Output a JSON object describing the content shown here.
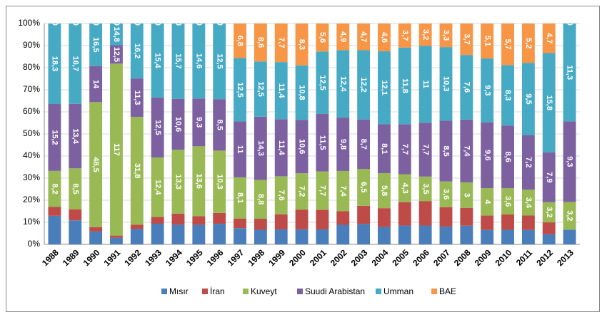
{
  "chart_data": {
    "type": "bar",
    "stacked": "percent",
    "categories": [
      "1988",
      "1989",
      "1990",
      "1991",
      "1992",
      "1993",
      "1994",
      "1995",
      "1996",
      "1997",
      "1998",
      "1999",
      "2000",
      "2001",
      "2002",
      "2003",
      "2004",
      "2005",
      "2006",
      "2007",
      "2008",
      "2009",
      "2010",
      "2011",
      "2012",
      "2013"
    ],
    "series": [
      {
        "name": "Mısır",
        "color": "#4a7ebb",
        "values": [
          6.5,
          5,
          5,
          4.5,
          4.5,
          4.3,
          4.1,
          3.8,
          3.4,
          3.2,
          3.3,
          3,
          3,
          3,
          3.6,
          3.6,
          2.9,
          2.9,
          2.7,
          2.5,
          2.2,
          2.1,
          2,
          1.9,
          1.6,
          1.7
        ]
      },
      {
        "name": "İran",
        "color": "#be4b48",
        "values": [
          2,
          2.3,
          1.7,
          1.5,
          1.3,
          1.4,
          2.3,
          1.7,
          1.8,
          1.9,
          2.5,
          3,
          3.9,
          3.9,
          2.5,
          3.2,
          3.1,
          3.6,
          3.5,
          2.7,
          2.1,
          2.1,
          2.1,
          1.9,
          1.9,
          0
        ]
      },
      {
        "name": "Kuveyt",
        "color": "#98b954",
        "values": [
          8.2,
          8.5,
          48.5,
          117,
          31.8,
          12.4,
          13.3,
          13.6,
          10.3,
          8.1,
          8.8,
          7.6,
          7.2,
          7.7,
          7.4,
          6.5,
          5.8,
          4.3,
          3.5,
          3.6,
          3,
          4,
          3.6,
          3.4,
          3.2,
          3.2
        ],
        "value_labels": [
          "8,2",
          "8,5",
          "48,5",
          "117",
          "31,8",
          "12,4",
          "13,3",
          "13,6",
          "10,3",
          "8,1",
          "8,8",
          "7,6",
          "7,2",
          "7,7",
          "7,4",
          "6,5",
          "5,8",
          "4,3",
          "3,5",
          "3,6",
          "3",
          "4",
          "3,6",
          "3,4",
          "3,2",
          "3,2"
        ]
      },
      {
        "name": "Suudi Arabistan",
        "color": "#7d60a0",
        "values": [
          15.2,
          13.4,
          14,
          12.5,
          11.3,
          12.5,
          10.6,
          9.3,
          8.5,
          11,
          14.3,
          11.4,
          10.6,
          11.5,
          9.8,
          8.7,
          8.1,
          7.7,
          7.7,
          8.5,
          7.4,
          9.6,
          8.6,
          7.2,
          7.9,
          9.3
        ],
        "value_labels": [
          "15,2",
          "13,4",
          "14",
          "12,5",
          "11,3",
          "12,5",
          "10,6",
          "9,3",
          "8,5",
          "11",
          "14,3",
          "11,4",
          "10,6",
          "11,5",
          "9,8",
          "8,7",
          "8,1",
          "7,7",
          "7,7",
          "8,5",
          "7,4",
          "9,6",
          "8,6",
          "7,2",
          "7,9",
          "9,3"
        ]
      },
      {
        "name": "Umman",
        "color": "#46aac5",
        "values": [
          18.3,
          16.7,
          16.5,
          14.8,
          16.2,
          15.4,
          15.7,
          14.6,
          12.5,
          12.5,
          12.5,
          11.4,
          10.8,
          12.5,
          12.4,
          12.2,
          12.1,
          11.8,
          11,
          10.3,
          7.6,
          9.3,
          8.3,
          9.5,
          15.8,
          11.3
        ],
        "value_labels": [
          "18,3",
          "16,7",
          "16,5",
          "14,8",
          "16,2",
          "15,4",
          "15,7",
          "14,6",
          "12,5",
          "12,5",
          "12,5",
          "11,4",
          "10,8",
          "12,5",
          "12,4",
          "12,2",
          "12,1",
          "11,8",
          "11",
          "10,3",
          "7,6",
          "9,3",
          "8,3",
          "9,5",
          "15,8",
          "11,3"
        ]
      },
      {
        "name": "BAE",
        "color": "#f79646",
        "values": [
          0,
          0,
          0,
          0,
          0,
          0,
          0,
          0,
          0,
          6.8,
          8.6,
          7.7,
          8.3,
          5.6,
          4.9,
          4.7,
          4.6,
          3.7,
          3.2,
          3.3,
          3.7,
          5.1,
          5.7,
          5.2,
          4.7,
          0
        ],
        "value_labels": [
          "0",
          "0",
          "0",
          "0",
          "0",
          "0",
          "0",
          "0",
          "0",
          "6,8",
          "8,6",
          "7,7",
          "8,3",
          "5,6",
          "4,9",
          "4,7",
          "4,6",
          "3,7",
          "3,2",
          "3,3",
          "3,7",
          "5,1",
          "5,7",
          "5,2",
          "4,7",
          "0"
        ]
      }
    ],
    "ylim": [
      0,
      100
    ],
    "yticks": [
      {
        "value": 0,
        "label": "0%"
      },
      {
        "value": 10,
        "label": "10%"
      },
      {
        "value": 20,
        "label": "20%"
      },
      {
        "value": 30,
        "label": "30%"
      },
      {
        "value": 40,
        "label": "40%"
      },
      {
        "value": 50,
        "label": "50%"
      },
      {
        "value": 60,
        "label": "60%"
      },
      {
        "value": 70,
        "label": "70%"
      },
      {
        "value": 80,
        "label": "80%"
      },
      {
        "value": 90,
        "label": "90%"
      },
      {
        "value": 100,
        "label": "100%"
      }
    ],
    "grid": true,
    "legend": "bottom"
  }
}
